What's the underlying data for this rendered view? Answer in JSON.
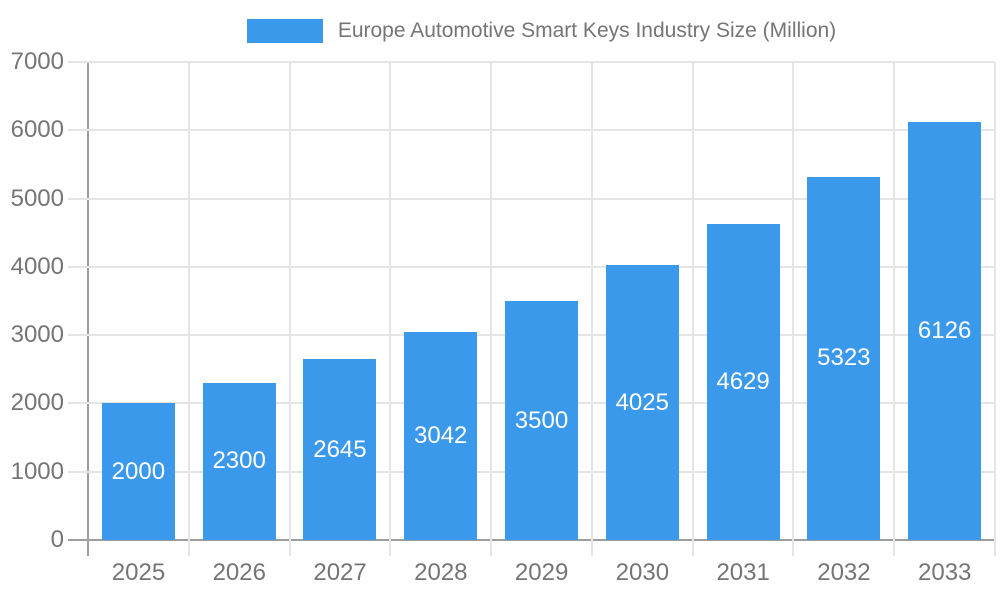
{
  "legend": {
    "label": "Europe Automotive Smart Keys Industry Size (Million)"
  },
  "chart_data": {
    "type": "bar",
    "title": "Europe Automotive Smart Keys Industry Size (Million)",
    "categories": [
      "2025",
      "2026",
      "2027",
      "2028",
      "2029",
      "2030",
      "2031",
      "2032",
      "2033"
    ],
    "values": [
      2000,
      2300,
      2645,
      3042,
      3500,
      4025,
      4629,
      5323,
      6126
    ],
    "series": [
      {
        "name": "Europe Automotive Smart Keys Industry Size (Million)",
        "values": [
          2000,
          2300,
          2645,
          3042,
          3500,
          4025,
          4629,
          5323,
          6126
        ]
      }
    ],
    "xlabel": "",
    "ylabel": "",
    "ylim": [
      0,
      7000
    ],
    "ytick_step": 1000,
    "yticks": [
      0,
      1000,
      2000,
      3000,
      4000,
      5000,
      6000,
      7000
    ],
    "grid": true,
    "legend_position": "top",
    "bar_labels_inside": true,
    "colors": {
      "bar": "#3b99ec",
      "bar_label": "#ffffff",
      "grid": "#e5e5e5",
      "axis": "#9e9e9e",
      "tick_label": "#757575",
      "legend_text": "#757575",
      "background": "#ffffff"
    }
  }
}
